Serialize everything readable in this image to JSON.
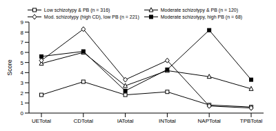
{
  "chart_data": {
    "type": "line",
    "categories": [
      "UETotal",
      "CDTotal",
      "IATotal",
      "INTotal",
      "NAPTotal",
      "TPBTotal"
    ],
    "y_label": "Score",
    "ylim": [
      0,
      9
    ],
    "yticks": [
      0,
      1,
      2,
      3,
      4,
      5,
      6,
      7,
      8,
      9
    ],
    "grid": false,
    "legend": "top",
    "series": [
      {
        "name": "Low schizotypy & PB (n = 316)",
        "color": "#000000",
        "marker": "square-open",
        "values": [
          1.8,
          3.1,
          1.8,
          2.1,
          0.8,
          0.6
        ]
      },
      {
        "name": "Moderate schizotypy & PB (n = 120)",
        "color": "#000000",
        "marker": "triangle-open",
        "values": [
          4.9,
          6.0,
          2.7,
          4.2,
          3.6,
          2.4
        ]
      },
      {
        "name": "Mod. schizotypy (high CD), low PB (n = 221)",
        "color": "#000000",
        "marker": "diamond-open",
        "values": [
          5.2,
          8.3,
          3.3,
          5.2,
          0.7,
          0.5
        ]
      },
      {
        "name": "Moderate schizotypy, high PB (n = 68)",
        "color": "#000000",
        "marker": "square",
        "values": [
          5.6,
          6.1,
          2.2,
          4.3,
          8.2,
          3.3
        ]
      }
    ]
  }
}
